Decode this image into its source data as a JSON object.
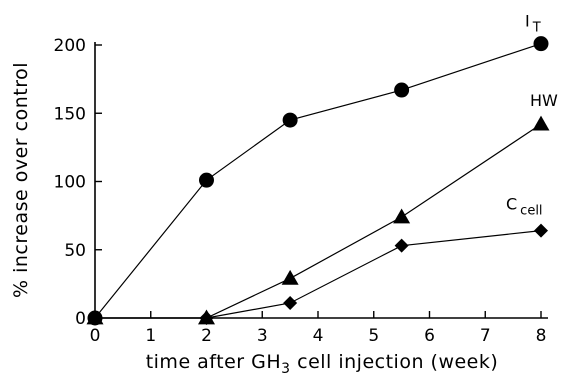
{
  "chart_data": {
    "type": "line",
    "title": "",
    "xlabel": {
      "pre": "time after GH",
      "sub": "3",
      "post": " cell injection (week)"
    },
    "ylabel": "% increase over control",
    "xlim": [
      0,
      8
    ],
    "ylim": [
      0,
      200
    ],
    "xticks": [
      0,
      1,
      2,
      3,
      4,
      5,
      6,
      7,
      8
    ],
    "yticks": [
      0,
      50,
      100,
      150,
      200
    ],
    "grid": false,
    "series": [
      {
        "name": "I",
        "name_sub": "T",
        "marker": "circle",
        "x": [
          0,
          2,
          3.5,
          5.5,
          8
        ],
        "y": [
          0,
          101,
          145,
          167,
          201
        ]
      },
      {
        "name": "HW",
        "name_sub": "",
        "marker": "triangle",
        "x": [
          0,
          2,
          3.5,
          5.5,
          8
        ],
        "y": [
          0,
          0,
          29,
          74,
          142
        ]
      },
      {
        "name": "C",
        "name_sub": "cell",
        "marker": "diamond",
        "x": [
          0,
          2,
          3.5,
          5.5,
          8
        ],
        "y": [
          0,
          0,
          11,
          53,
          64
        ]
      }
    ]
  }
}
